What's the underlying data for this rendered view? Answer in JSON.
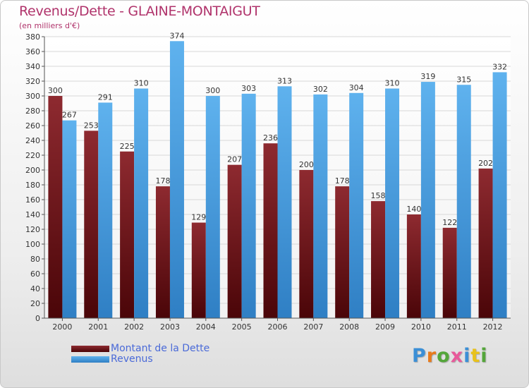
{
  "chart_data": {
    "type": "bar",
    "title": "Revenus/Dette - GLAINE-MONTAIGUT",
    "subtitle": "(en milliers d'€)",
    "categories": [
      "2000",
      "2001",
      "2002",
      "2003",
      "2004",
      "2005",
      "2006",
      "2007",
      "2008",
      "2009",
      "2010",
      "2011",
      "2012"
    ],
    "series": [
      {
        "name": "Montant de la Dette",
        "color": "#7a1418",
        "values": [
          300,
          253,
          225,
          178,
          129,
          207,
          236,
          200,
          178,
          158,
          140,
          122,
          202
        ]
      },
      {
        "name": "Revenus",
        "color": "#4ea6e6",
        "values": [
          267,
          291,
          310,
          374,
          300,
          303,
          313,
          302,
          304,
          310,
          319,
          315,
          332
        ]
      }
    ],
    "ylim": [
      0,
      380
    ],
    "ytick_step": 20,
    "grid": true,
    "legend_position": "bottom-left"
  },
  "logo": {
    "letters": [
      {
        "char": "P",
        "color": "#3b8fd6"
      },
      {
        "char": "r",
        "color": "#e87b1c"
      },
      {
        "char": "o",
        "color": "#54a63a"
      },
      {
        "char": "x",
        "color": "#e85a9a"
      },
      {
        "char": "i",
        "color": "#3b8fd6"
      },
      {
        "char": "t",
        "color": "#e8c21c"
      },
      {
        "char": "i",
        "color": "#54a63a"
      }
    ]
  }
}
